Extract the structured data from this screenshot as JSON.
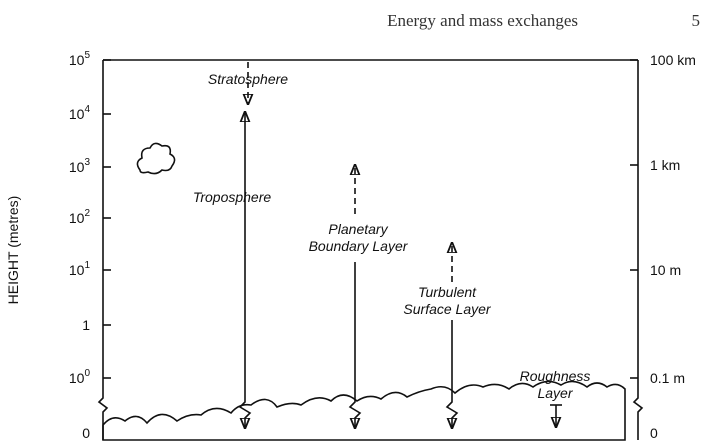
{
  "header": {
    "title": "Energy and mass exchanges",
    "page": "5"
  },
  "figure": {
    "y_axis_label": "HEIGHT (metres)",
    "left_ticks": [
      {
        "base": "10",
        "exp": "5"
      },
      {
        "base": "10",
        "exp": "4"
      },
      {
        "base": "10",
        "exp": "3"
      },
      {
        "base": "10",
        "exp": "2"
      },
      {
        "base": "10",
        "exp": "1"
      },
      {
        "base": "1"
      },
      {
        "base": "10",
        "exp": "0"
      },
      {
        "base": "0"
      }
    ],
    "right_ticks": [
      "100 km",
      "1 km",
      "10 m",
      "0.1 m",
      "0"
    ],
    "layers": [
      {
        "lines": [
          "Stratosphere"
        ]
      },
      {
        "lines": [
          "Troposphere"
        ]
      },
      {
        "lines": [
          "Planetary",
          "Boundary Layer"
        ]
      },
      {
        "lines": [
          "Turbulent",
          "Surface Layer"
        ]
      },
      {
        "lines": [
          "Roughness",
          "Layer"
        ]
      }
    ]
  }
}
